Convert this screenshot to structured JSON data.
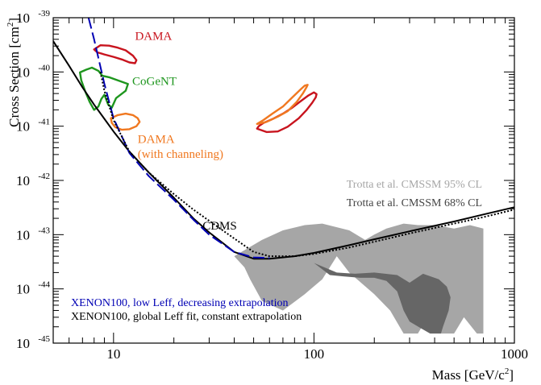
{
  "chart_data": {
    "type": "line",
    "xlabel_base": "Mass [GeV/c",
    "xlabel_sup": "2",
    "xlabel_tail": "]",
    "ylabel_base": "Cross Section [cm",
    "ylabel_sup": "2",
    "ylabel_tail": "]",
    "x_scale": "log",
    "y_scale": "log",
    "xlim": [
      5,
      1000
    ],
    "ylim": [
      1e-45,
      1e-39
    ],
    "x_ticks": [
      {
        "value": 10,
        "label": "10"
      },
      {
        "value": 100,
        "label": "100"
      },
      {
        "value": 1000,
        "label": "1000"
      }
    ],
    "y_ticks": [
      {
        "value": 1e-39,
        "base": "10",
        "exp": "-39"
      },
      {
        "value": 1e-40,
        "base": "10",
        "exp": "-40"
      },
      {
        "value": 1e-41,
        "base": "10",
        "exp": "-41"
      },
      {
        "value": 1e-42,
        "base": "10",
        "exp": "-42"
      },
      {
        "value": 1e-43,
        "base": "10",
        "exp": "-43"
      },
      {
        "value": 1e-44,
        "base": "10",
        "exp": "-44"
      },
      {
        "value": 1e-45,
        "base": "10",
        "exp": "-45"
      }
    ],
    "grid": false,
    "series": [
      {
        "name": "XENON100, global Leff fit, constant extrapolation",
        "kind": "line",
        "color": "#000000",
        "dash": "solid",
        "x": [
          5,
          6,
          7,
          8,
          10,
          12,
          15,
          20,
          25,
          30,
          40,
          50,
          60,
          80,
          100,
          150,
          200,
          300,
          500,
          700,
          1000
        ],
        "y": [
          3.7e-40,
          1.3e-40,
          5.2e-41,
          2.5e-41,
          8e-42,
          3.4e-42,
          1.4e-42,
          4.8e-43,
          2e-43,
          1.1e-43,
          4.8e-44,
          3.6e-44,
          3.6e-44,
          4e-44,
          4.6e-44,
          6.4e-44,
          8.2e-44,
          1.15e-43,
          1.75e-43,
          2.35e-43,
          3.2e-43
        ]
      },
      {
        "name": "XENON100, low Leff, decreasing extrapolation",
        "kind": "line",
        "color": "#0000b4",
        "dash": "long",
        "x": [
          7.5,
          8,
          9,
          10,
          12,
          15,
          20,
          25,
          30,
          40,
          50,
          60
        ],
        "y": [
          1e-39,
          4e-40,
          6e-41,
          1.4e-41,
          3.2e-42,
          1.2e-42,
          4.4e-43,
          1.9e-43,
          1e-43,
          4.8e-44,
          3.8e-44,
          3.7e-44
        ]
      },
      {
        "name": "CDMS",
        "kind": "line",
        "color": "#000000",
        "dash": "dotted",
        "x": [
          8.6,
          9,
          10,
          12,
          15,
          20,
          25,
          30,
          40,
          50,
          60,
          80,
          100,
          150,
          200,
          300,
          500,
          700,
          1000
        ],
        "y": [
          1e-40,
          4.5e-41,
          1.3e-41,
          3.4e-42,
          1.4e-42,
          5.6e-43,
          2.9e-43,
          1.8e-43,
          8.5e-44,
          4.8e-44,
          4e-44,
          4e-44,
          4.4e-44,
          5.8e-44,
          7.4e-44,
          1.05e-43,
          1.6e-43,
          2.1e-43,
          2.9e-43
        ]
      }
    ],
    "regions": [
      {
        "name": "Trotta et al. CMSSM 95% CL",
        "kind": "filled",
        "color": "#a6a6a6",
        "x": [
          40,
          55,
          70,
          90,
          110,
          150,
          180,
          200,
          230,
          280,
          330,
          400,
          500,
          600,
          700,
          700,
          650,
          560,
          500,
          430,
          400,
          330,
          280,
          240,
          200,
          150,
          130,
          110,
          90,
          70,
          55,
          48,
          45,
          40
        ],
        "y": [
          4e-44,
          8e-44,
          1.2e-43,
          1.5e-43,
          1.6e-43,
          1.2e-43,
          8e-44,
          1e-43,
          1.3e-43,
          1.6e-43,
          1.5e-43,
          1.5e-43,
          1.3e-43,
          1.5e-43,
          1.3e-43,
          1.5e-45,
          1.5e-45,
          3e-45,
          1.5e-45,
          1.5e-45,
          5e-45,
          1.5e-45,
          1.5e-45,
          4e-45,
          8e-45,
          2e-44,
          4e-44,
          1.5e-44,
          8e-45,
          4e-45,
          6e-45,
          1.5e-44,
          2.5e-44,
          4e-44
        ]
      },
      {
        "name": "Trotta et al. CMSSM 68% CL",
        "kind": "filled",
        "color": "#666666",
        "x": [
          100,
          130,
          160,
          200,
          260,
          300,
          350,
          420,
          460,
          480,
          470,
          440,
          430,
          380,
          340,
          300,
          280,
          260,
          230,
          200,
          170,
          140,
          120,
          100
        ],
        "y": [
          3e-44,
          2e-44,
          1.9e-44,
          2e-44,
          1.8e-44,
          1.3e-44,
          1.9e-44,
          1.5e-44,
          1.1e-44,
          7e-45,
          4e-45,
          2e-45,
          1.5e-45,
          1.5e-45,
          1.9e-45,
          2.5e-45,
          4e-45,
          9e-45,
          1.4e-44,
          1.6e-44,
          1.6e-44,
          1.7e-44,
          1.8e-44,
          3e-44
        ]
      },
      {
        "name": "DAMA",
        "kind": "contour",
        "color": "#c8141e",
        "x": [
          8,
          8.6,
          9.5,
          10.5,
          11.5,
          12.5,
          13,
          12.8,
          12,
          11,
          10,
          9,
          8.3,
          8
        ],
        "y": [
          2.6e-40,
          3.1e-40,
          3.05e-40,
          2.8e-40,
          2.5e-40,
          2e-40,
          1.65e-40,
          1.45e-40,
          1.5e-40,
          1.7e-40,
          1.9e-40,
          2.1e-40,
          2.3e-40,
          2.6e-40
        ]
      },
      {
        "name": "DAMA",
        "kind": "contour",
        "color": "#c8141e",
        "x": [
          52,
          58,
          66,
          74,
          84,
          92,
          98,
          102,
          103,
          100,
          94,
          86,
          78,
          70,
          62,
          56,
          53,
          52
        ],
        "y": [
          9e-42,
          7.8e-42,
          8e-42,
          9.8e-42,
          1.4e-41,
          2e-41,
          2.7e-41,
          3.4e-41,
          3.9e-41,
          4.2e-41,
          3.7e-41,
          2.9e-41,
          2.2e-41,
          1.7e-41,
          1.35e-41,
          1.15e-41,
          1e-41,
          9e-42
        ]
      },
      {
        "name": "DAMA (with channeling)",
        "kind": "contour",
        "color": "#f07820",
        "x": [
          9.7,
          10.5,
          11.5,
          12.5,
          13.2,
          13.5,
          13,
          12,
          11,
          10.2,
          9.8,
          9.7
        ],
        "y": [
          1.4e-41,
          1.6e-41,
          1.7e-41,
          1.6e-41,
          1.4e-41,
          1.2e-41,
          1e-41,
          8.8e-42,
          8.6e-42,
          9.6e-42,
          1.15e-41,
          1.4e-41
        ]
      },
      {
        "name": "DAMA (with channeling)",
        "kind": "contour",
        "color": "#f07820",
        "x": [
          52,
          58,
          66,
          74,
          82,
          88,
          92,
          93,
          90,
          86,
          78,
          70,
          62,
          56,
          52
        ],
        "y": [
          1.1e-41,
          1.2e-41,
          1.5e-41,
          1.9e-41,
          2.8e-41,
          4e-41,
          5.3e-41,
          5.8e-41,
          5.6e-41,
          4.8e-41,
          3.4e-41,
          2.3e-41,
          1.7e-41,
          1.3e-41,
          1.1e-41
        ]
      },
      {
        "name": "CoGeNT",
        "kind": "contour",
        "color": "#1e961e",
        "x": [
          6.8,
          7.3,
          7.8,
          8.4,
          8.8,
          9.5,
          10.5,
          11.8,
          11.5,
          10.3,
          9.8,
          9.4,
          9.0,
          8.7,
          8.4,
          8.0,
          7.6,
          7.2,
          6.9,
          6.8
        ],
        "y": [
          9.8e-41,
          1.1e-40,
          1.2e-40,
          1.05e-40,
          8.5e-41,
          8e-41,
          7e-41,
          6e-41,
          4.5e-41,
          3.3e-41,
          2.2e-41,
          2.5e-41,
          3.8e-41,
          3.2e-41,
          2.3e-41,
          2e-41,
          2.8e-41,
          4.5e-41,
          7e-41,
          9.8e-41
        ]
      }
    ],
    "annotations": [
      {
        "text": "DAMA",
        "color": "#c8141e",
        "mass": 12.8,
        "sigma": 3.9e-40
      },
      {
        "text": "CoGeNT",
        "color": "#1e961e",
        "mass": 12.4,
        "sigma": 5.8e-41
      },
      {
        "text": "DAMA",
        "color": "#f07820",
        "mass": 13.2,
        "sigma": 4.9e-42
      },
      {
        "text": "(with channeling)",
        "color": "#f07820",
        "mass": 13.2,
        "sigma": 2.6e-42
      },
      {
        "text": "CDMS",
        "color": "#000000",
        "mass": 27.8,
        "sigma": 1.25e-43
      }
    ],
    "legend": [
      {
        "text": "Trotta et al. CMSSM 95% CL",
        "color": "#a6a6a6",
        "placement": "upper-right"
      },
      {
        "text": "Trotta et al. CMSSM 68% CL",
        "color": "#444444",
        "placement": "upper-right"
      },
      {
        "text": "XENON100, low Leff, decreasing extrapolation",
        "color": "#0000b4",
        "placement": "lower-left"
      },
      {
        "text": "XENON100, global Leff fit, constant extrapolation",
        "color": "#000000",
        "placement": "lower-left"
      }
    ]
  }
}
